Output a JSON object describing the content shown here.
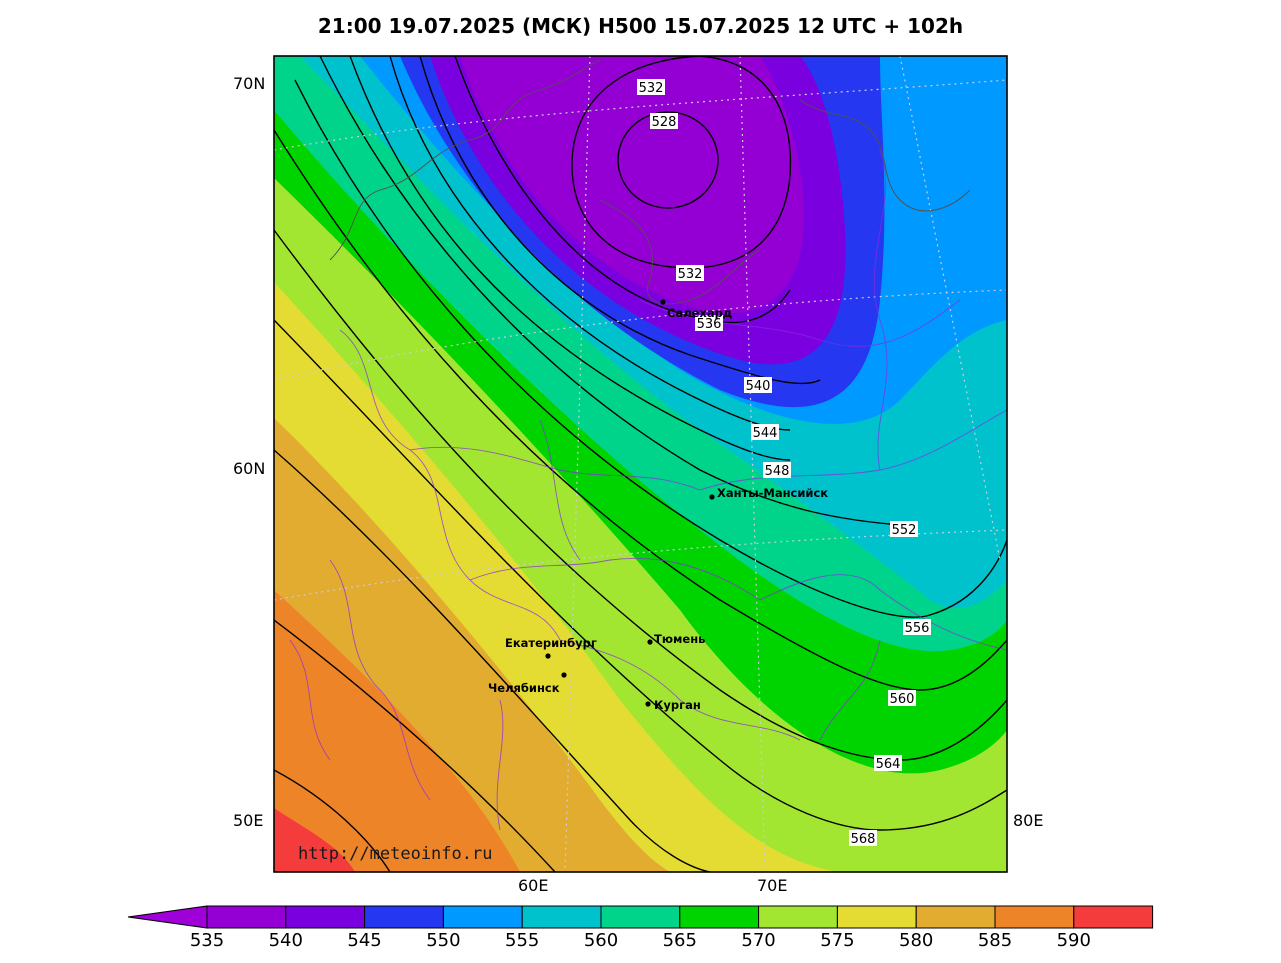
{
  "title": "21:00 19.07.2025 (МСК) H500  15.07.2025 12 UTC + 102h",
  "watermark": "http://meteoinfo.ru",
  "lat_labels": [
    "70N",
    "60N",
    "50E"
  ],
  "lon_labels": [
    "60E",
    "70E",
    "80E"
  ],
  "colorbar": {
    "ticks": [
      "535",
      "540",
      "545",
      "550",
      "555",
      "560",
      "565",
      "570",
      "575",
      "580",
      "585",
      "590"
    ],
    "colors": [
      "#9400d3",
      "#7a00e0",
      "#2537f0",
      "#0099ff",
      "#00c2cc",
      "#00d48a",
      "#00d400",
      "#a2e632",
      "#e4dc32",
      "#e2ac30",
      "#ee8428",
      "#f43c3c"
    ],
    "under_color": "#a000d8",
    "over_color": "#ee1493"
  },
  "contour_labels": [
    "532",
    "528",
    "532",
    "536",
    "540",
    "544",
    "548",
    "552",
    "556",
    "560",
    "564",
    "568"
  ],
  "cities": [
    "Салехард",
    "Ханты-Мансийск",
    "Екатеринбург",
    "Тюмень",
    "Челябинск",
    "Курган"
  ]
}
